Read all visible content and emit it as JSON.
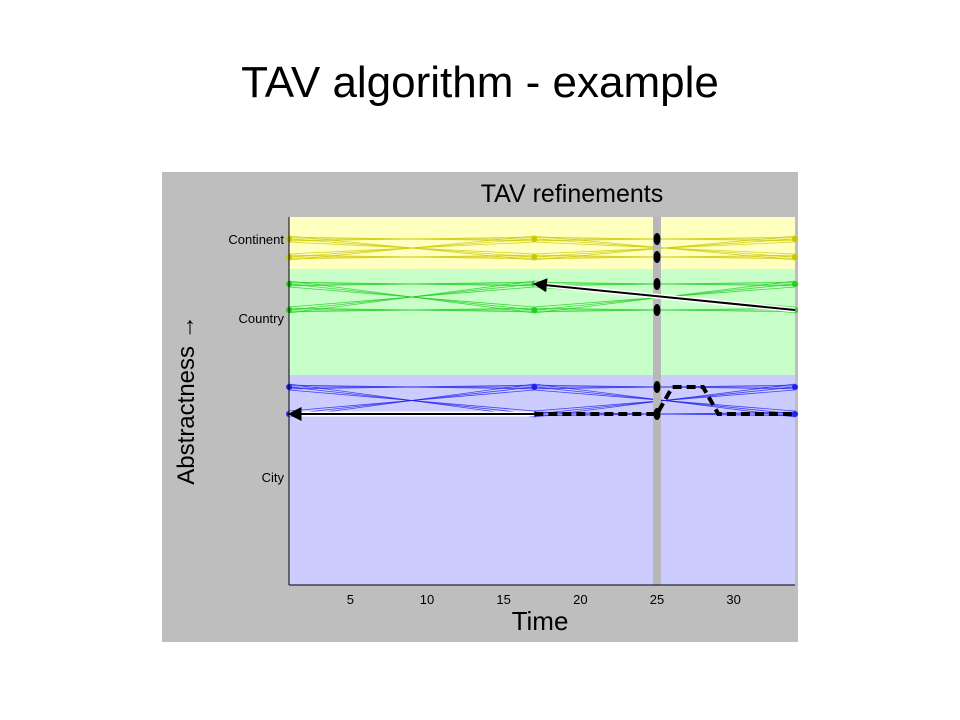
{
  "slide": {
    "title": "TAV algorithm - example"
  },
  "chart_data": {
    "type": "line",
    "title": "TAV refinements",
    "xlabel": "Time",
    "ylabel": "Abstractness →",
    "xlim": [
      1,
      34
    ],
    "x_ticks": [
      5,
      10,
      15,
      20,
      25,
      30
    ],
    "grid": false,
    "current_time_marker": 25,
    "levels": [
      {
        "name": "Continent",
        "color": "#ffffc0",
        "line_color": "#c8c800",
        "rows": [
          "Continent-A",
          "Continent-B"
        ],
        "timepoints": [
          1,
          17,
          34
        ]
      },
      {
        "name": "Country",
        "color": "#c8ffc8",
        "line_color": "#22cc22",
        "rows": [
          "Country-A",
          "Country-B"
        ],
        "timepoints": [
          1,
          17,
          34
        ]
      },
      {
        "name": "City",
        "color": "#ccccff",
        "line_color": "#2222ee",
        "rows": [
          "City-A",
          "City-B"
        ],
        "timepoints": [
          1,
          17,
          34
        ]
      }
    ],
    "refinement_arrows": [
      {
        "from": {
          "x": 34,
          "row": "Country-B"
        },
        "to": {
          "x": 17,
          "row": "Country-A"
        },
        "style": "solid"
      },
      {
        "from": {
          "x": 17,
          "row": "City-B"
        },
        "to": {
          "x": 1,
          "row": "City-B"
        },
        "style": "solid"
      }
    ],
    "refined_path": {
      "style": "dashed",
      "points": [
        {
          "x": 17,
          "row": "City-B"
        },
        {
          "x": 25,
          "row": "City-B"
        },
        {
          "x": 26,
          "row": "City-A"
        },
        {
          "x": 28,
          "row": "City-A"
        },
        {
          "x": 29,
          "row": "City-B"
        },
        {
          "x": 34,
          "row": "City-B"
        }
      ]
    }
  }
}
